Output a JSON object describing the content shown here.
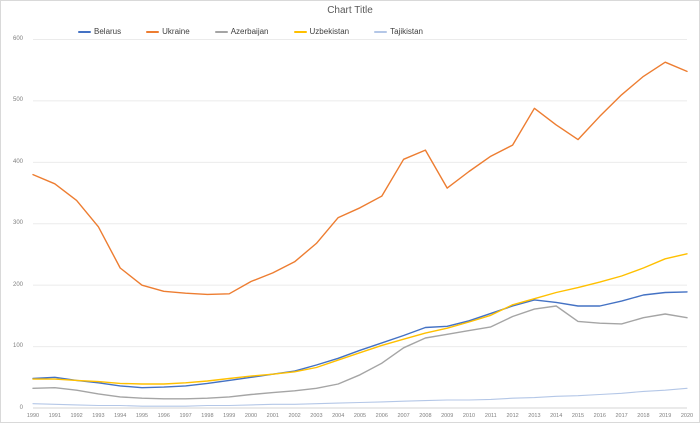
{
  "chart_data": {
    "type": "line",
    "title": "Chart Title",
    "xlabel": "",
    "ylabel": "",
    "x": [
      1990,
      1991,
      1992,
      1993,
      1994,
      1995,
      1996,
      1997,
      1998,
      1999,
      2000,
      2001,
      2002,
      2003,
      2004,
      2005,
      2006,
      2007,
      2008,
      2009,
      2010,
      2011,
      2012,
      2013,
      2014,
      2015,
      2016,
      2017,
      2018,
      2019,
      2020
    ],
    "ylim": [
      0,
      600
    ],
    "ytick_interval": 100,
    "grid": "horizontal",
    "legend_position": "top",
    "colors": {
      "gridline": "#ebebeb",
      "axis_line": "#d4d4d4",
      "title_text": "#595959",
      "tick_text": "#7f7f7f"
    },
    "series": [
      {
        "name": "Belarus",
        "color": "#4472C4",
        "width": 1.4,
        "values": [
          48,
          50,
          45,
          41,
          36,
          33,
          34,
          36,
          40,
          45,
          50,
          55,
          60,
          70,
          81,
          94,
          106,
          118,
          131,
          133,
          142,
          154,
          166,
          176,
          172,
          166,
          166,
          174,
          184,
          188,
          189
        ]
      },
      {
        "name": "Ukraine",
        "color": "#ED7D31",
        "width": 1.4,
        "values": [
          380,
          365,
          338,
          295,
          228,
          200,
          190,
          187,
          185,
          186,
          206,
          220,
          238,
          268,
          310,
          326,
          345,
          405,
          420,
          358,
          385,
          410,
          428,
          488,
          461,
          437,
          475,
          510,
          540,
          563,
          548
        ]
      },
      {
        "name": "Azerbaijan",
        "color": "#A5A5A5",
        "width": 1.4,
        "values": [
          32,
          33,
          29,
          23,
          18,
          16,
          15,
          15,
          16,
          18,
          22,
          25,
          28,
          32,
          39,
          54,
          73,
          98,
          114,
          120,
          126,
          132,
          149,
          161,
          166,
          141,
          138,
          137,
          147,
          153,
          147
        ]
      },
      {
        "name": "Uzbekistan",
        "color": "#FFC000",
        "width": 1.4,
        "values": [
          47,
          47,
          45,
          43,
          40,
          39,
          39,
          41,
          44,
          48,
          52,
          55,
          59,
          66,
          78,
          90,
          102,
          112,
          122,
          130,
          140,
          151,
          168,
          178,
          188,
          196,
          205,
          215,
          228,
          243,
          251
        ]
      },
      {
        "name": "Tajikistan",
        "color": "#B4C7E7",
        "width": 1.1,
        "values": [
          7,
          6,
          5,
          4,
          4,
          3,
          3,
          3,
          4,
          4,
          5,
          6,
          6,
          7,
          8,
          9,
          10,
          11,
          12,
          13,
          13,
          14,
          16,
          17,
          19,
          20,
          22,
          24,
          27,
          29,
          32
        ]
      }
    ]
  }
}
